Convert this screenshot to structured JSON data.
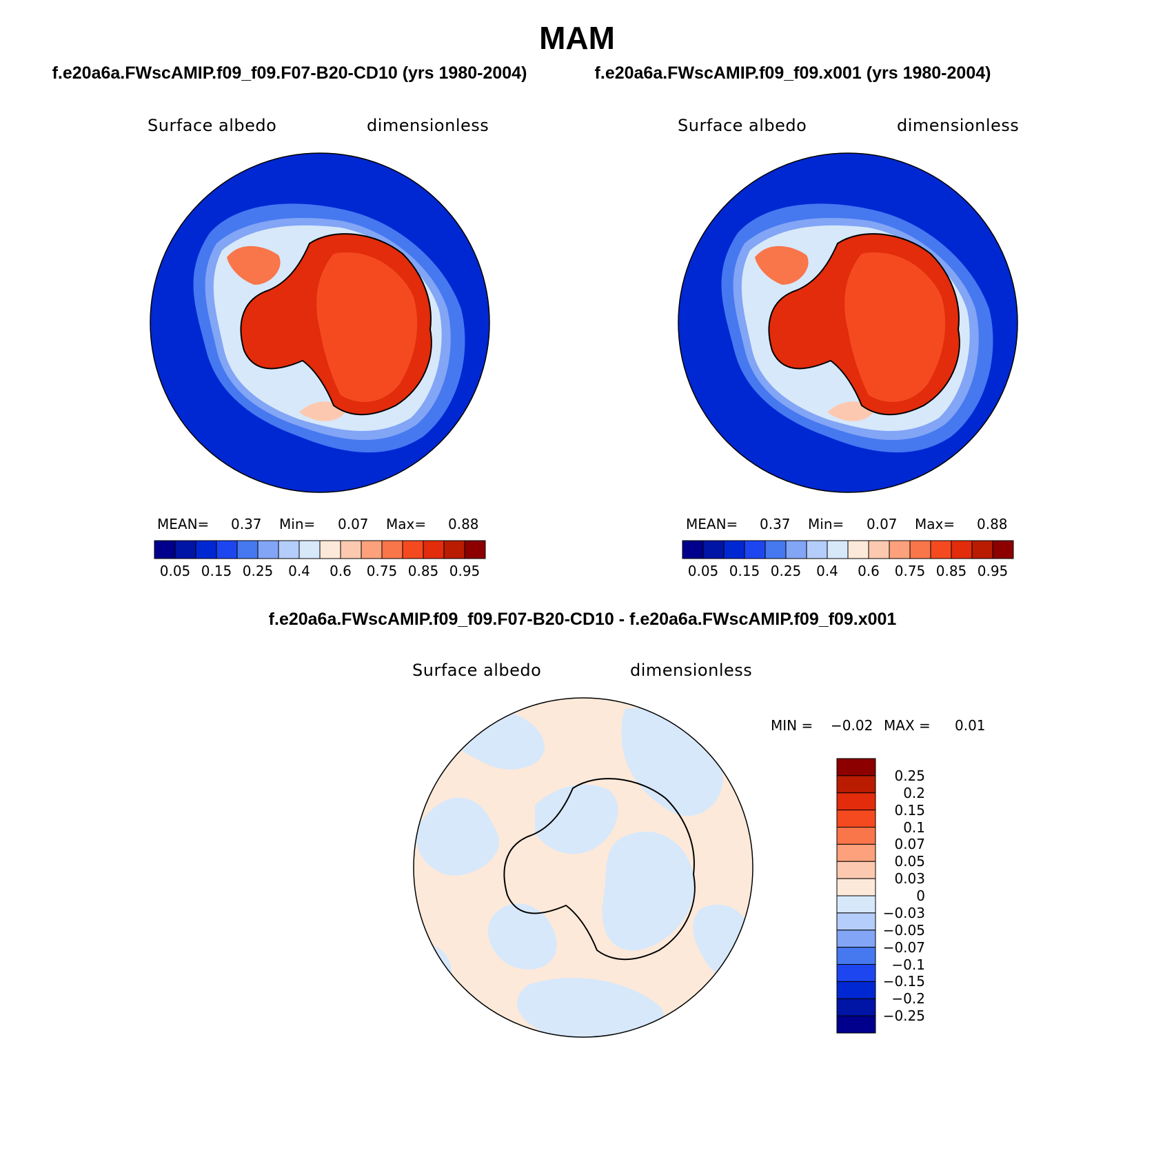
{
  "title": "MAM",
  "panels": [
    {
      "case_title": "f.e20a6a.FWscAMIP.f09_f09.F07-B20-CD10 (yrs 1980-2004)",
      "variable": "Surface albedo",
      "units": "dimensionless",
      "stats": {
        "mean_label": "MEAN=",
        "mean": "0.37",
        "min_label": "Min=",
        "min": "0.07",
        "max_label": "Max=",
        "max": "0.88"
      }
    },
    {
      "case_title": "f.e20a6a.FWscAMIP.f09_f09.x001 (yrs 1980-2004)",
      "variable": "Surface albedo",
      "units": "dimensionless",
      "stats": {
        "mean_label": "MEAN=",
        "mean": "0.37",
        "min_label": "Min=",
        "min": "0.07",
        "max_label": "Max=",
        "max": "0.88"
      }
    }
  ],
  "diff_panel": {
    "case_title": "f.e20a6a.FWscAMIP.f09_f09.F07-B20-CD10 - f.e20a6a.FWscAMIP.f09_f09.x001",
    "variable": "Surface albedo",
    "units": "dimensionless",
    "stats": {
      "min_label": "MIN =",
      "min": "−0.02",
      "max_label": "MAX =",
      "max": "0.01"
    }
  },
  "chart_data": [
    {
      "type": "heatmap",
      "projection": "south-polar-stereographic",
      "title": "f.e20a6a.FWscAMIP.f09_f09.F07-B20-CD10 (yrs 1980-2004)",
      "variable": "Surface albedo",
      "units": "dimensionless",
      "colorbar_levels": [
        "0.05",
        "0.1",
        "0.15",
        "0.2",
        "0.25",
        "0.3",
        "0.4",
        "0.5",
        "0.6",
        "0.7",
        "0.75",
        "0.8",
        "0.85",
        "0.9",
        "0.95"
      ],
      "colorbar_tick_labels": [
        "0.05",
        "0.15",
        "0.25",
        "0.4",
        "0.6",
        "0.75",
        "0.85",
        "0.95"
      ],
      "colorbar_colors": [
        "#00008c",
        "#0014a6",
        "#0028d2",
        "#1e46f0",
        "#4678f0",
        "#82a5f5",
        "#b4cdfa",
        "#d7e8fb",
        "#fde9d9",
        "#fcc9b0",
        "#fca17b",
        "#f9754a",
        "#f54a20",
        "#e22c0c",
        "#b91c00",
        "#8c0000"
      ],
      "field": {
        "ocean": 0.07,
        "sea_ice_edge": [
          0.1,
          0.3
        ],
        "ice_shelf": 0.75,
        "antarctica_interior": 0.82,
        "antarctica_coast": 0.86
      },
      "mean": 0.37,
      "min": 0.07,
      "max": 0.88
    },
    {
      "type": "heatmap",
      "projection": "south-polar-stereographic",
      "title": "f.e20a6a.FWscAMIP.f09_f09.x001 (yrs 1980-2004)",
      "variable": "Surface albedo",
      "units": "dimensionless",
      "colorbar_levels": [
        "0.05",
        "0.1",
        "0.15",
        "0.2",
        "0.25",
        "0.3",
        "0.4",
        "0.5",
        "0.6",
        "0.7",
        "0.75",
        "0.8",
        "0.85",
        "0.9",
        "0.95"
      ],
      "colorbar_tick_labels": [
        "0.05",
        "0.15",
        "0.25",
        "0.4",
        "0.6",
        "0.75",
        "0.85",
        "0.95"
      ],
      "colorbar_colors": [
        "#00008c",
        "#0014a6",
        "#0028d2",
        "#1e46f0",
        "#4678f0",
        "#82a5f5",
        "#b4cdfa",
        "#d7e8fb",
        "#fde9d9",
        "#fcc9b0",
        "#fca17b",
        "#f9754a",
        "#f54a20",
        "#e22c0c",
        "#b91c00",
        "#8c0000"
      ],
      "field": {
        "ocean": 0.07,
        "sea_ice_edge": [
          0.1,
          0.3
        ],
        "ice_shelf": 0.75,
        "antarctica_interior": 0.82,
        "antarctica_coast": 0.86
      },
      "mean": 0.37,
      "min": 0.07,
      "max": 0.88
    },
    {
      "type": "heatmap",
      "projection": "south-polar-stereographic",
      "title": "f.e20a6a.FWscAMIP.f09_f09.F07-B20-CD10 - f.e20a6a.FWscAMIP.f09_f09.x001",
      "variable": "Surface albedo",
      "units": "dimensionless",
      "colorbar_levels": [
        "0.25",
        "0.2",
        "0.15",
        "0.1",
        "0.07",
        "0.05",
        "0.03",
        "0",
        "−0.03",
        "−0.05",
        "−0.07",
        "−0.1",
        "−0.15",
        "−0.2",
        "−0.25"
      ],
      "colorbar_colors_top_to_bottom": [
        "#8c0000",
        "#b91c00",
        "#e22c0c",
        "#f54a20",
        "#f9754a",
        "#fca17b",
        "#fcc9b0",
        "#fde9d9",
        "#d7e8fb",
        "#b4cdfa",
        "#82a5f5",
        "#4678f0",
        "#1e46f0",
        "#0028d2",
        "#0014a6",
        "#00008c"
      ],
      "field": {
        "dominant_positive_bin": "0 to 0.03",
        "dominant_negative_bin": "−0.03 to 0"
      },
      "min": -0.02,
      "max": 0.01
    }
  ]
}
